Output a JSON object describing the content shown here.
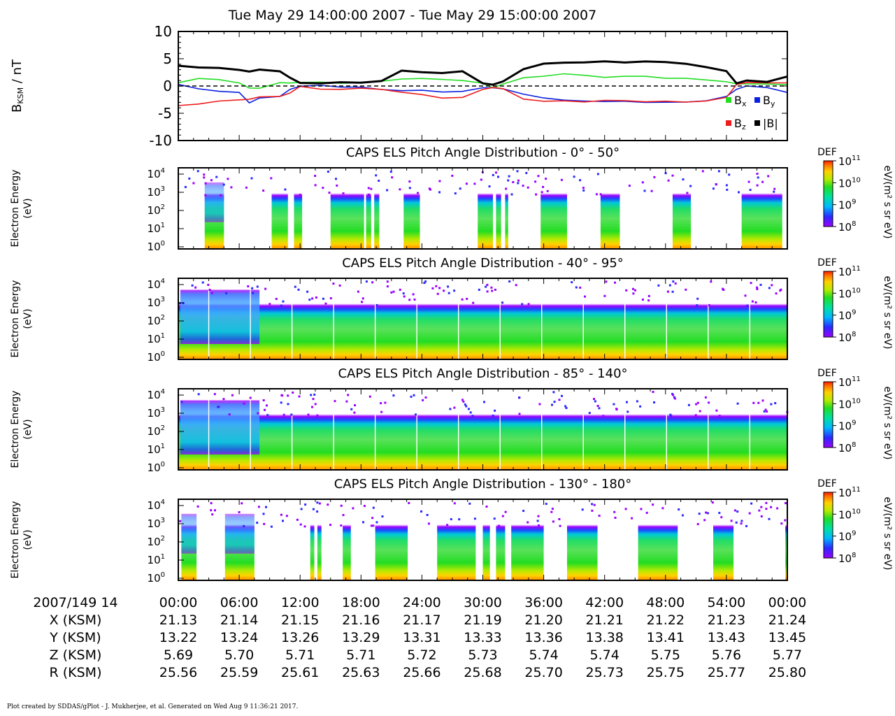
{
  "header": {
    "title": "Tue May 29 14:00:00 2007 - Tue May 29 15:00:00 2007"
  },
  "chart_data": [
    {
      "type": "line",
      "ylabel": "B",
      "ylabel_sub": "KSM",
      "ylabel_unit": " / nT",
      "ylim": [
        -10,
        10
      ],
      "yticks": [
        "10",
        "5",
        "0",
        "-5",
        "-10"
      ],
      "x_minutes": [
        0,
        2,
        4,
        6,
        7,
        8,
        10,
        11,
        12,
        14,
        16,
        18,
        20,
        22,
        24,
        26,
        28,
        30,
        31,
        32,
        34,
        36,
        38,
        40,
        42,
        44,
        46,
        48,
        50,
        52,
        54,
        55,
        56,
        58,
        60
      ],
      "zero_line": "dashed",
      "legend": [
        "B",
        "B",
        "B",
        "|B|"
      ],
      "legend_subs": [
        "x",
        "y",
        "z",
        ""
      ],
      "series": [
        {
          "name": "B",
          "color": "#22dd22",
          "values": [
            0.6,
            1.3,
            1.3,
            0.5,
            -0.4,
            -0.3,
            0.5,
            0.6,
            0.7,
            0.6,
            0.6,
            0.6,
            0.8,
            1.4,
            1.3,
            1.2,
            1.1,
            0.4,
            -0.3,
            0.4,
            1.4,
            1.9,
            2.2,
            1.9,
            1.7,
            1.7,
            1.8,
            1.5,
            1.3,
            1.2,
            0.8,
            0.3,
            0.5,
            0.3,
            0.2
          ]
        },
        {
          "name": "B",
          "color": "#0a1fe0",
          "values": [
            0.2,
            -0.5,
            -0.9,
            -1.3,
            -3.0,
            -2.2,
            -2.0,
            -0.5,
            -0.1,
            0.1,
            -0.1,
            -0.3,
            -0.6,
            -0.8,
            -0.9,
            -1.0,
            -1.0,
            -0.4,
            -0.2,
            -0.6,
            -1.5,
            -2.1,
            -2.7,
            -2.7,
            -2.8,
            -2.9,
            -2.9,
            -3.0,
            -3.0,
            -2.6,
            -2.0,
            -0.6,
            0.1,
            -0.4,
            -1.1
          ]
        },
        {
          "name": "B",
          "color": "#ee1c1c",
          "values": [
            -3.7,
            -3.2,
            -2.8,
            -2.6,
            -2.3,
            -2.1,
            -1.9,
            -1.2,
            -0.2,
            -0.5,
            -0.6,
            -0.5,
            -0.5,
            -1.2,
            -1.6,
            -2.1,
            -2.2,
            -0.6,
            -0.2,
            -0.6,
            -2.3,
            -2.8,
            -2.8,
            -2.8,
            -2.7,
            -2.7,
            -2.8,
            -2.9,
            -2.9,
            -2.7,
            -2.2,
            0.4,
            0.6,
            0.5,
            0.7
          ]
        },
        {
          "name": "|B|",
          "color": "#000000",
          "values": [
            3.7,
            3.5,
            3.2,
            3.0,
            2.7,
            2.9,
            2.8,
            1.5,
            0.5,
            0.6,
            0.6,
            0.6,
            1.0,
            2.7,
            2.6,
            2.4,
            2.6,
            0.6,
            0.2,
            0.8,
            3.2,
            4.0,
            4.3,
            4.4,
            4.4,
            4.4,
            4.5,
            4.3,
            4.2,
            3.4,
            2.7,
            0.6,
            0.9,
            0.8,
            1.8
          ]
        }
      ]
    },
    {
      "type": "heatmap",
      "title": "CAPS ELS Pitch Angle Distribution - 0° - 50°",
      "ylabel": [
        "Electron Energy",
        "(eV)"
      ],
      "ytick_exponents": [
        "4",
        "3",
        "2",
        "1",
        "0"
      ],
      "colorbar": {
        "label": "DEF",
        "unit": "eV/(m² s sr eV)",
        "min_exp": "8",
        "max_exp": "11",
        "ticks": [
          "11",
          "10",
          "9",
          "8"
        ]
      },
      "data_intervals_min": [
        [
          2.6,
          4.5
        ],
        [
          9.2,
          10.8
        ],
        [
          11.4,
          12.2
        ],
        [
          15.0,
          18.3
        ],
        [
          18.5,
          19.0
        ],
        [
          19.3,
          19.8
        ],
        [
          22.2,
          23.8
        ],
        [
          29.5,
          31.0
        ],
        [
          31.3,
          31.8
        ],
        [
          32.2,
          32.5
        ],
        [
          35.7,
          38.3
        ],
        [
          41.6,
          43.5
        ],
        [
          48.7,
          50.5
        ],
        [
          55.5,
          59.5
        ]
      ]
    },
    {
      "type": "heatmap",
      "title": "CAPS ELS Pitch Angle Distribution - 40° - 95°",
      "ylabel": [
        "Electron Energy",
        "(eV)"
      ],
      "ytick_exponents": [
        "4",
        "3",
        "2",
        "1",
        "0"
      ],
      "colorbar": {
        "label": "DEF",
        "unit": "eV/(m² s sr eV)",
        "min_exp": "8",
        "max_exp": "11",
        "ticks": [
          "11",
          "10",
          "9",
          "8"
        ]
      },
      "data_intervals_min": [
        [
          0.0,
          60.0
        ]
      ]
    },
    {
      "type": "heatmap",
      "title": "CAPS ELS Pitch Angle Distribution - 85° - 140°",
      "ylabel": [
        "Electron Energy",
        "(eV)"
      ],
      "ytick_exponents": [
        "4",
        "3",
        "2",
        "1",
        "0"
      ],
      "colorbar": {
        "label": "DEF",
        "unit": "eV/(m² s sr eV)",
        "min_exp": "8",
        "max_exp": "11",
        "ticks": [
          "11",
          "10",
          "9",
          "8"
        ]
      },
      "data_intervals_min": [
        [
          0.0,
          60.0
        ]
      ]
    },
    {
      "type": "heatmap",
      "title": "CAPS ELS Pitch Angle Distribution - 130° - 180°",
      "ylabel": [
        "Electron Energy",
        "(eV)"
      ],
      "ytick_exponents": [
        "4",
        "3",
        "2",
        "1",
        "0"
      ],
      "colorbar": {
        "label": "DEF",
        "unit": "eV/(m² s sr eV)",
        "min_exp": "8",
        "max_exp": "11",
        "ticks": [
          "11",
          "10",
          "9",
          "8"
        ]
      },
      "data_intervals_min": [
        [
          0.3,
          1.8
        ],
        [
          4.6,
          7.5
        ],
        [
          13.0,
          13.4
        ],
        [
          13.7,
          14.1
        ],
        [
          16.2,
          17.0
        ],
        [
          19.4,
          22.6
        ],
        [
          25.5,
          29.3
        ],
        [
          30.0,
          30.7
        ],
        [
          31.3,
          32.2
        ],
        [
          32.8,
          36.0
        ],
        [
          38.3,
          41.3
        ],
        [
          45.3,
          49.2
        ],
        [
          52.7,
          54.7
        ],
        [
          59.8,
          60.0
        ]
      ]
    }
  ],
  "time_axis": {
    "row_label": "2007/149 14",
    "ticks": [
      "00:00",
      "06:00",
      "12:00",
      "18:00",
      "24:00",
      "30:00",
      "36:00",
      "42:00",
      "48:00",
      "54:00",
      "00:00"
    ]
  },
  "ephemeris": [
    {
      "label": "X (KSM)",
      "values": [
        "21.13",
        "21.14",
        "21.15",
        "21.16",
        "21.17",
        "21.19",
        "21.20",
        "21.21",
        "21.22",
        "21.23",
        "21.24"
      ]
    },
    {
      "label": "Y (KSM)",
      "values": [
        "13.22",
        "13.24",
        "13.26",
        "13.29",
        "13.31",
        "13.33",
        "13.36",
        "13.38",
        "13.41",
        "13.43",
        "13.45"
      ]
    },
    {
      "label": "Z (KSM)",
      "values": [
        "5.69",
        "5.70",
        "5.71",
        "5.71",
        "5.72",
        "5.73",
        "5.74",
        "5.74",
        "5.75",
        "5.76",
        "5.77"
      ]
    },
    {
      "label": "R (KSM)",
      "values": [
        "25.56",
        "25.59",
        "25.61",
        "25.63",
        "25.66",
        "25.68",
        "25.70",
        "25.73",
        "25.75",
        "25.77",
        "25.80"
      ]
    }
  ],
  "footer": "Plot created by SDDAS/gPlot - J. Mukherjee, et al.  Generated on Wed Aug 9 11:36:21 2017."
}
